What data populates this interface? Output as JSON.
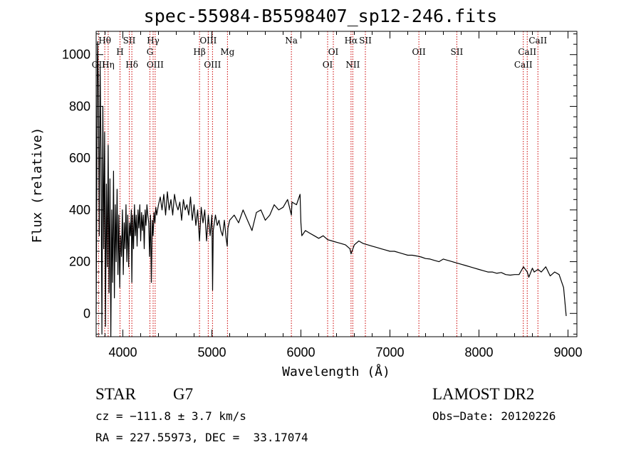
{
  "title": "spec-55984-B5598407_sp12-246.fits",
  "chart_data": {
    "type": "line",
    "xlabel": "Wavelength (Å)",
    "ylabel": "Flux (relative)",
    "xlim": [
      3700,
      9100
    ],
    "ylim": [
      -90,
      1090
    ],
    "x_ticks": [
      4000,
      5000,
      6000,
      7000,
      8000,
      9000
    ],
    "y_ticks": [
      0,
      200,
      400,
      600,
      800,
      1000
    ],
    "line_color": "#000000",
    "marker_color": "#cc0000",
    "spectrum_x": [
      3700,
      3715,
      3725,
      3735,
      3745,
      3755,
      3765,
      3775,
      3785,
      3795,
      3805,
      3815,
      3825,
      3835,
      3845,
      3855,
      3865,
      3875,
      3885,
      3895,
      3905,
      3915,
      3925,
      3935,
      3945,
      3955,
      3965,
      3975,
      3985,
      3995,
      4005,
      4015,
      4025,
      4035,
      4045,
      4055,
      4065,
      4075,
      4085,
      4095,
      4101,
      4110,
      4120,
      4130,
      4140,
      4150,
      4160,
      4170,
      4180,
      4190,
      4200,
      4210,
      4220,
      4230,
      4240,
      4250,
      4260,
      4270,
      4280,
      4290,
      4300,
      4310,
      4320,
      4330,
      4340,
      4350,
      4360,
      4370,
      4380,
      4400,
      4420,
      4440,
      4460,
      4480,
      4500,
      4520,
      4540,
      4560,
      4580,
      4600,
      4620,
      4640,
      4660,
      4680,
      4700,
      4720,
      4740,
      4760,
      4780,
      4800,
      4820,
      4840,
      4861,
      4880,
      4900,
      4920,
      4940,
      4960,
      4980,
      5000,
      5008,
      5015,
      5040,
      5060,
      5080,
      5100,
      5120,
      5140,
      5160,
      5172,
      5180,
      5200,
      5250,
      5300,
      5350,
      5400,
      5450,
      5500,
      5550,
      5600,
      5650,
      5700,
      5750,
      5800,
      5850,
      5893,
      5900,
      5950,
      5990,
      6000,
      6010,
      6050,
      6100,
      6150,
      6200,
      6250,
      6300,
      6350,
      6400,
      6450,
      6500,
      6550,
      6563,
      6600,
      6650,
      6700,
      6750,
      6800,
      6850,
      6900,
      6950,
      7000,
      7050,
      7100,
      7150,
      7200,
      7250,
      7300,
      7350,
      7400,
      7450,
      7500,
      7550,
      7600,
      7650,
      7700,
      7750,
      7800,
      7850,
      7900,
      7950,
      8000,
      8050,
      8100,
      8150,
      8200,
      8250,
      8300,
      8350,
      8400,
      8450,
      8500,
      8542,
      8560,
      8600,
      8620,
      8662,
      8700,
      8750,
      8800,
      8850,
      8900,
      8950,
      8980,
      8995,
      9005
    ],
    "spectrum_y": [
      0,
      1050,
      880,
      300,
      950,
      600,
      -80,
      800,
      250,
      700,
      -50,
      500,
      180,
      650,
      80,
      520,
      -100,
      400,
      120,
      550,
      60,
      420,
      200,
      480,
      150,
      380,
      100,
      300,
      220,
      400,
      150,
      350,
      250,
      420,
      200,
      380,
      180,
      350,
      300,
      400,
      120,
      380,
      250,
      420,
      300,
      380,
      260,
      400,
      330,
      420,
      280,
      390,
      320,
      380,
      250,
      400,
      340,
      420,
      380,
      350,
      220,
      380,
      120,
      360,
      300,
      390,
      350,
      410,
      380,
      420,
      450,
      400,
      460,
      380,
      470,
      400,
      440,
      380,
      460,
      420,
      400,
      430,
      360,
      440,
      400,
      420,
      380,
      450,
      360,
      420,
      340,
      400,
      280,
      410,
      350,
      400,
      280,
      380,
      300,
      380,
      90,
      320,
      380,
      340,
      360,
      320,
      300,
      360,
      290,
      260,
      330,
      360,
      380,
      350,
      400,
      360,
      320,
      390,
      400,
      360,
      380,
      420,
      400,
      410,
      440,
      380,
      430,
      420,
      460,
      350,
      300,
      320,
      310,
      300,
      290,
      300,
      285,
      280,
      275,
      270,
      265,
      250,
      230,
      265,
      280,
      270,
      265,
      260,
      255,
      250,
      245,
      240,
      240,
      235,
      230,
      225,
      225,
      222,
      218,
      212,
      210,
      205,
      200,
      210,
      205,
      200,
      195,
      190,
      185,
      180,
      175,
      170,
      165,
      160,
      160,
      155,
      158,
      150,
      148,
      150,
      150,
      180,
      160,
      140,
      175,
      160,
      170,
      160,
      180,
      145,
      160,
      150,
      100,
      -10
    ],
    "lines": [
      {
        "label": "OII",
        "wavelength": 3727,
        "row": 3
      },
      {
        "label": "Hθ",
        "wavelength": 3797,
        "row": 1
      },
      {
        "label": "Hη",
        "wavelength": 3835,
        "row": 3
      },
      {
        "label": "SII",
        "wavelength": 4072,
        "row": 1
      },
      {
        "label": "H",
        "wavelength": 3968,
        "row": 2
      },
      {
        "label": "Hδ",
        "wavelength": 4101,
        "row": 3
      },
      {
        "label": "Hγ",
        "wavelength": 4340,
        "row": 1
      },
      {
        "label": "G",
        "wavelength": 4304,
        "row": 2
      },
      {
        "label": "OIII",
        "wavelength": 4363,
        "row": 3
      },
      {
        "label": "OIII",
        "wavelength": 4959,
        "row": 1
      },
      {
        "label": "Hβ",
        "wavelength": 4861,
        "row": 2
      },
      {
        "label": "OIII",
        "wavelength": 5007,
        "row": 3
      },
      {
        "label": "Mg",
        "wavelength": 5175,
        "row": 2
      },
      {
        "label": "Na",
        "wavelength": 5893,
        "row": 1
      },
      {
        "label": "OI",
        "wavelength": 6364,
        "row": 2
      },
      {
        "label": "OI",
        "wavelength": 6300,
        "row": 3
      },
      {
        "label": "Hα",
        "wavelength": 6563,
        "row": 1
      },
      {
        "label": "SII",
        "wavelength": 6724,
        "row": 1
      },
      {
        "label": "NII",
        "wavelength": 6583,
        "row": 3
      },
      {
        "label": "OII",
        "wavelength": 7325,
        "row": 2
      },
      {
        "label": "SII",
        "wavelength": 7751,
        "row": 2
      },
      {
        "label": "CaII",
        "wavelength": 8662,
        "row": 1
      },
      {
        "label": "CaII",
        "wavelength": 8542,
        "row": 2
      },
      {
        "label": "CaII",
        "wavelength": 8498,
        "row": 3
      }
    ]
  },
  "info": {
    "class": "STAR",
    "subclass": "G7",
    "survey": "LAMOST DR2",
    "cz": "cz = −111.8 ± 3.7 km/s",
    "obs_date": "Obs−Date: 20120226",
    "coords": "RA = 227.55973, DEC =  33.17074"
  }
}
